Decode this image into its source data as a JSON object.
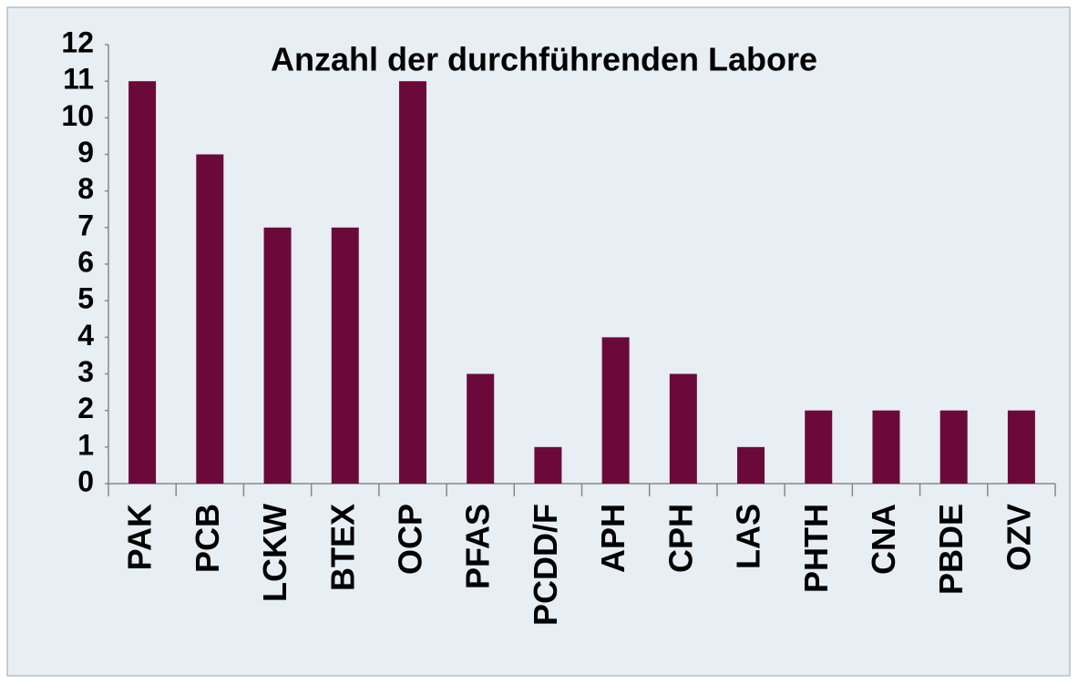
{
  "chart_data": {
    "type": "bar",
    "title": "Anzahl der durchführenden Labore",
    "categories": [
      "PAK",
      "PCB",
      "LCKW",
      "BTEX",
      "OCP",
      "PFAS",
      "PCDD/F",
      "APH",
      "CPH",
      "LAS",
      "PHTH",
      "CNA",
      "PBDE",
      "OZV"
    ],
    "values": [
      11,
      9,
      7,
      7,
      11,
      3,
      1,
      4,
      3,
      1,
      2,
      2,
      2,
      2
    ],
    "color": "#6b0a3a",
    "ylim": [
      0,
      12
    ],
    "yticks": [
      0,
      1,
      2,
      3,
      4,
      5,
      6,
      7,
      8,
      9,
      10,
      11,
      12
    ],
    "grid": false
  }
}
